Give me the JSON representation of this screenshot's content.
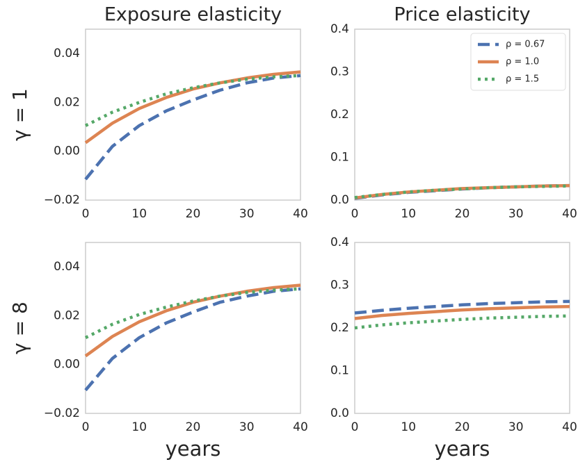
{
  "chart_data": [
    {
      "type": "line",
      "title": "Exposure elasticity",
      "ylabel": "γ = 1",
      "x": [
        0,
        5,
        10,
        15,
        20,
        25,
        30,
        35,
        40
      ],
      "series": [
        {
          "name": "ρ = 0.67",
          "color": "#4c72b0",
          "values": [
            -0.0115,
            0.002,
            0.0105,
            0.0165,
            0.021,
            0.025,
            0.028,
            0.03,
            0.031
          ]
        },
        {
          "name": "ρ = 1.0",
          "color": "#dd8452",
          "values": [
            0.0035,
            0.0115,
            0.0175,
            0.022,
            0.0255,
            0.028,
            0.03,
            0.0315,
            0.0325
          ]
        },
        {
          "name": "ρ = 1.5",
          "color": "#55a868",
          "values": [
            0.0105,
            0.016,
            0.02,
            0.0235,
            0.026,
            0.028,
            0.0295,
            0.0305,
            0.031
          ]
        }
      ],
      "xlim": [
        0,
        40
      ],
      "xticks": [
        0,
        10,
        20,
        30,
        40
      ],
      "ylim": [
        -0.02,
        0.05
      ],
      "yticks": [
        {
          "value": -0.02,
          "label": "−0.02"
        },
        {
          "value": 0,
          "label": "0.00"
        },
        0.02,
        0.04
      ],
      "grid": false
    },
    {
      "type": "line",
      "title": "Price elasticity",
      "x": [
        0,
        5,
        10,
        15,
        20,
        25,
        30,
        35,
        40
      ],
      "series": [
        {
          "name": "ρ = 0.67",
          "color": "#4c72b0",
          "values": [
            0.004,
            0.012,
            0.018,
            0.022,
            0.026,
            0.029,
            0.031,
            0.033,
            0.034
          ]
        },
        {
          "name": "ρ = 1.0",
          "color": "#dd8452",
          "values": [
            0.005,
            0.013,
            0.019,
            0.023,
            0.027,
            0.029,
            0.031,
            0.033,
            0.034
          ]
        },
        {
          "name": "ρ = 1.5",
          "color": "#55a868",
          "values": [
            0.006,
            0.013,
            0.019,
            0.023,
            0.026,
            0.029,
            0.031,
            0.032,
            0.033
          ]
        }
      ],
      "xlim": [
        0,
        40
      ],
      "xticks": [
        0,
        10,
        20,
        30,
        40
      ],
      "ylim": [
        0,
        0.4
      ],
      "yticks": [
        {
          "value": 0,
          "label": "0.0"
        },
        0.1,
        0.2,
        0.3,
        0.4
      ],
      "grid": false,
      "legend": "upper right"
    },
    {
      "type": "line",
      "ylabel": "γ = 8",
      "xlabel": "years",
      "x": [
        0,
        5,
        10,
        15,
        20,
        25,
        30,
        35,
        40
      ],
      "series": [
        {
          "name": "ρ = 0.67",
          "color": "#4c72b0",
          "values": [
            -0.0105,
            0.0025,
            0.011,
            0.017,
            0.0215,
            0.0255,
            0.028,
            0.03,
            0.031
          ]
        },
        {
          "name": "ρ = 1.0",
          "color": "#dd8452",
          "values": [
            0.0035,
            0.0115,
            0.0175,
            0.022,
            0.0255,
            0.028,
            0.03,
            0.0315,
            0.0325
          ]
        },
        {
          "name": "ρ = 1.5",
          "color": "#55a868",
          "values": [
            0.011,
            0.0165,
            0.0205,
            0.0235,
            0.026,
            0.028,
            0.0295,
            0.0305,
            0.031
          ]
        }
      ],
      "xlim": [
        0,
        40
      ],
      "xticks": [
        0,
        10,
        20,
        30,
        40
      ],
      "ylim": [
        -0.02,
        0.05
      ],
      "yticks": [
        {
          "value": -0.02,
          "label": "−0.02"
        },
        {
          "value": 0,
          "label": "0.00"
        },
        0.02,
        0.04
      ],
      "grid": false
    },
    {
      "type": "line",
      "xlabel": "years",
      "x": [
        0,
        5,
        10,
        15,
        20,
        25,
        30,
        35,
        40
      ],
      "series": [
        {
          "name": "ρ = 0.67",
          "color": "#4c72b0",
          "values": [
            0.235,
            0.241,
            0.246,
            0.25,
            0.254,
            0.257,
            0.259,
            0.261,
            0.262
          ]
        },
        {
          "name": "ρ = 1.0",
          "color": "#dd8452",
          "values": [
            0.222,
            0.229,
            0.234,
            0.238,
            0.242,
            0.245,
            0.247,
            0.249,
            0.25
          ]
        },
        {
          "name": "ρ = 1.5",
          "color": "#55a868",
          "values": [
            0.2,
            0.207,
            0.212,
            0.216,
            0.22,
            0.223,
            0.225,
            0.227,
            0.228
          ]
        }
      ],
      "xlim": [
        0,
        40
      ],
      "xticks": [
        0,
        10,
        20,
        30,
        40
      ],
      "ylim": [
        0,
        0.4
      ],
      "yticks": [
        {
          "value": 0,
          "label": "0.0"
        },
        0.1,
        0.2,
        0.3,
        0.4
      ],
      "grid": false
    }
  ]
}
